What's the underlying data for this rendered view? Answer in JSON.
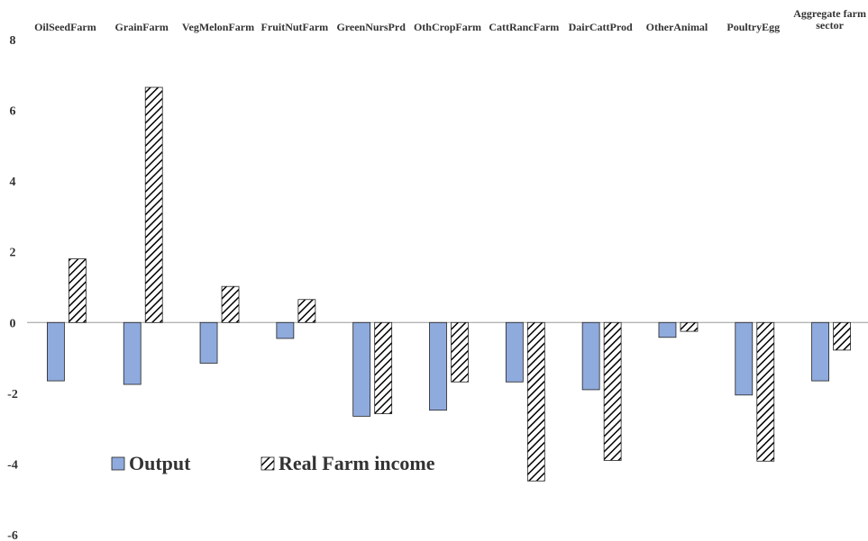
{
  "chart_data": {
    "type": "bar",
    "categories": [
      "OilSeedFarm",
      "GrainFarm",
      "VegMelonFarm",
      "FruitNutFarm",
      "GreenNursPrd",
      "OthCropFarm",
      "CattRancFarm",
      "DairCattProd",
      "OtherAnimal",
      "PoultryEgg",
      "Aggregate farm sector"
    ],
    "series": [
      {
        "name": "Output",
        "color": "#8faadc",
        "values": [
          -1.65,
          -1.75,
          -1.15,
          -0.45,
          -2.65,
          -2.48,
          -1.68,
          -1.9,
          -0.42,
          -2.05,
          -1.65
        ]
      },
      {
        "name": "Real Farm income",
        "color": "hatch",
        "values": [
          1.8,
          6.65,
          1.02,
          0.65,
          -2.58,
          -1.68,
          -4.48,
          -3.9,
          -0.25,
          -3.92,
          -0.78
        ]
      }
    ],
    "ylim": [
      -6,
      8
    ],
    "yticks": [
      -6,
      -4,
      -2,
      0,
      2,
      4,
      6,
      8
    ],
    "grid": false,
    "legend": "bottom-left"
  }
}
